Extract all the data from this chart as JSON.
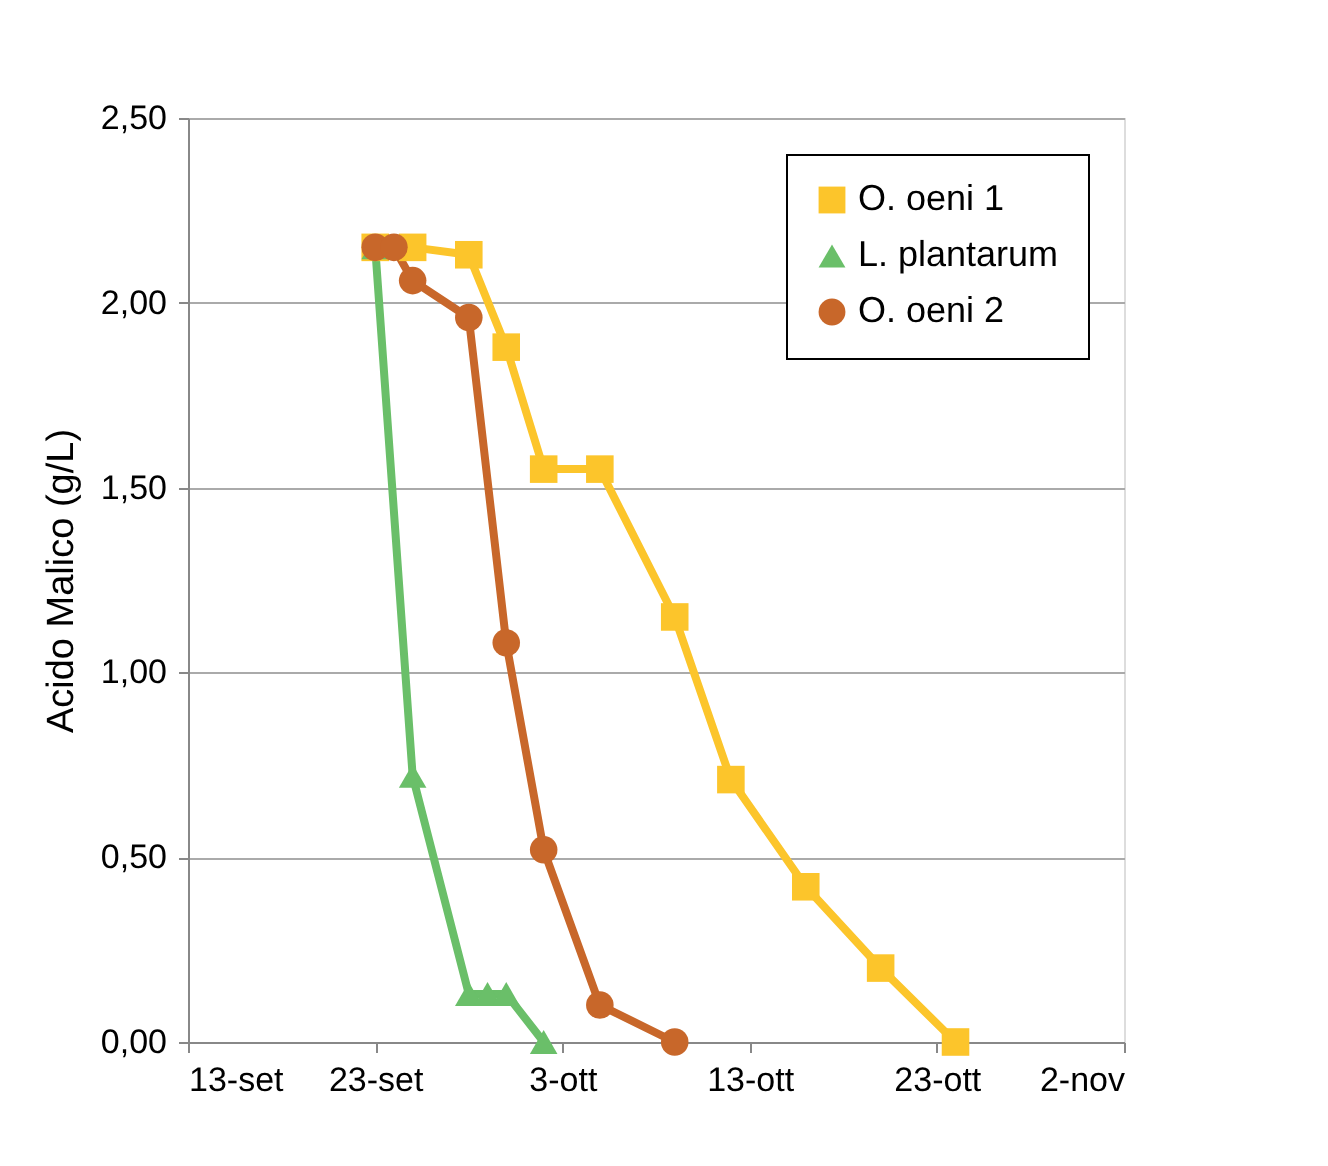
{
  "chart_data": {
    "type": "line",
    "ylabel": "Acido Malico (g/L)",
    "xlim": [
      "--09-13",
      "--11-02"
    ],
    "xticks": [
      {
        "value": "--09-13",
        "label": "13-set"
      },
      {
        "value": "--09-23",
        "label": "23-set"
      },
      {
        "value": "--10-03",
        "label": "3-ott"
      },
      {
        "value": "--10-13",
        "label": "13-ott"
      },
      {
        "value": "--10-23",
        "label": "23-ott"
      },
      {
        "value": "--11-02",
        "label": "2-nov"
      }
    ],
    "ylim": [
      0,
      2.5
    ],
    "yticks": [
      {
        "value": 0,
        "label": "0,00"
      },
      {
        "value": 0.5,
        "label": "0,50"
      },
      {
        "value": 1,
        "label": "1,00"
      },
      {
        "value": 1.5,
        "label": "1,50"
      },
      {
        "value": 2,
        "label": "2,00"
      },
      {
        "value": 2.5,
        "label": "2,50"
      }
    ],
    "grid": "y",
    "legend": "top right",
    "line_style": "solid",
    "series": [
      {
        "name": "O. oeni 1",
        "color": "#fcc52b",
        "marker": "square",
        "x": [
          "--09-23",
          "--09-25",
          "--09-28",
          "--09-30",
          "--10-02",
          "--10-05",
          "--10-09",
          "--10-12",
          "--10-16",
          "--10-20",
          "--10-24"
        ],
        "values": [
          2.15,
          2.15,
          2.13,
          1.88,
          1.55,
          1.55,
          1.15,
          0.71,
          0.42,
          0.2,
          0
        ]
      },
      {
        "name": "L. plantarum",
        "color": "#6abf69",
        "marker": "triangle",
        "x": [
          "--09-23",
          "--09-25",
          "--09-28",
          "--09-29",
          "--09-30",
          "--10-02"
        ],
        "values": [
          2.15,
          0.72,
          0.13,
          0.13,
          0.13,
          0
        ]
      },
      {
        "name": "O. oeni 2",
        "color": "#c8672a",
        "marker": "circle",
        "x": [
          "--09-23",
          "--09-24",
          "--09-25",
          "--09-28",
          "--09-30",
          "--10-02",
          "--10-05",
          "--10-09"
        ],
        "values": [
          2.15,
          2.15,
          2.06,
          1.96,
          1.08,
          0.52,
          0.1,
          0
        ]
      }
    ]
  }
}
